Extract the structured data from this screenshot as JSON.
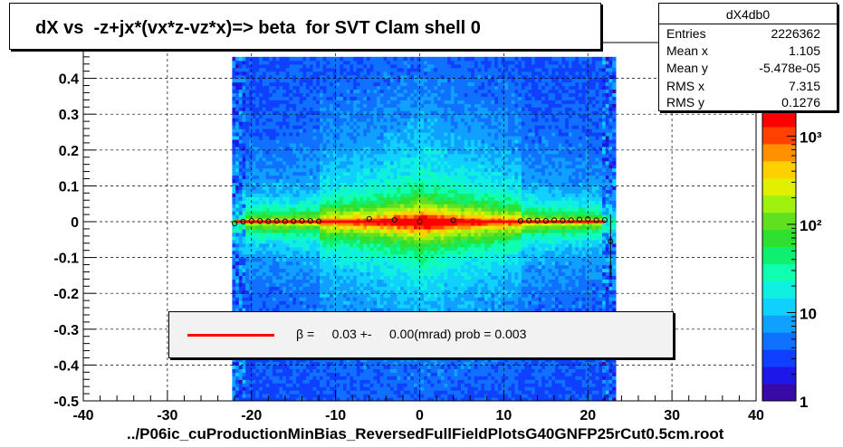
{
  "title": "dX vs  -z+jx*(vx*z-vz*x)=> beta  for SVT Clam shell 0",
  "stats": {
    "name": "dX4db0",
    "rows": [
      {
        "label": "Entries",
        "value": "2226362"
      },
      {
        "label": "Mean x",
        "value": "1.105"
      },
      {
        "label": "Mean y",
        "value": "-5.478e-05"
      },
      {
        "label": "RMS x",
        "value": "7.315"
      },
      {
        "label": "RMS y",
        "value": "0.1276"
      }
    ]
  },
  "legend": {
    "text": "β =     0.03 +-     0.00(mrad) prob = 0.003",
    "line_color": "#ff0000"
  },
  "footer": "../P06ic_cuProductionMinBias_ReversedFullFieldPlotsG40GNFP25rCut0.5cm.root",
  "chart_data": {
    "type": "heatmap",
    "xlim": [
      -40,
      40
    ],
    "ylim": [
      -0.5,
      0.5
    ],
    "x_ticks": [
      "-40",
      "-30",
      "-20",
      "-10",
      "0",
      "10",
      "20",
      "30",
      "40"
    ],
    "y_ticks": [
      "-0.5",
      "-0.4",
      "-0.3",
      "-0.2",
      "-0.1",
      "0",
      "0.1",
      "0.2",
      "0.3",
      "0.4"
    ],
    "grid": true,
    "z_scale": "log",
    "z_range": [
      1,
      2000
    ],
    "z_ticks": [
      {
        "value": 1,
        "label": "1"
      },
      {
        "value": 10,
        "label": "10"
      },
      {
        "value": 100,
        "label": "10²"
      },
      {
        "value": 1000,
        "label": "10³"
      }
    ],
    "occupied_x_range": [
      -21.5,
      22.5
    ],
    "fit_line": {
      "y": 0.0,
      "x_range": [
        -22,
        22
      ],
      "color": "#ff0000"
    },
    "profile_points": [
      {
        "x": -22,
        "y": -0.005
      },
      {
        "x": -21,
        "y": 0.0
      },
      {
        "x": -20,
        "y": 0.002
      },
      {
        "x": -19,
        "y": 0.002
      },
      {
        "x": -18,
        "y": 0.001
      },
      {
        "x": -17,
        "y": 0.002
      },
      {
        "x": -16,
        "y": 0.001
      },
      {
        "x": -15,
        "y": 0.001
      },
      {
        "x": -14,
        "y": 0.002
      },
      {
        "x": -13,
        "y": 0.002
      },
      {
        "x": -12,
        "y": 0.001
      },
      {
        "x": -6,
        "y": 0.008
      },
      {
        "x": -3,
        "y": 0.005
      },
      {
        "x": 0,
        "y": 0.0
      },
      {
        "x": 4,
        "y": 0.004
      },
      {
        "x": 12,
        "y": 0.002
      },
      {
        "x": 13,
        "y": 0.003
      },
      {
        "x": 14,
        "y": 0.003
      },
      {
        "x": 15,
        "y": 0.002
      },
      {
        "x": 16,
        "y": 0.004
      },
      {
        "x": 17,
        "y": 0.003
      },
      {
        "x": 18,
        "y": 0.004
      },
      {
        "x": 19,
        "y": 0.006
      },
      {
        "x": 20,
        "y": 0.007
      },
      {
        "x": 21,
        "y": 0.004
      },
      {
        "x": 22,
        "y": 0.005
      },
      {
        "x": 22.7,
        "y": -0.055
      }
    ]
  }
}
